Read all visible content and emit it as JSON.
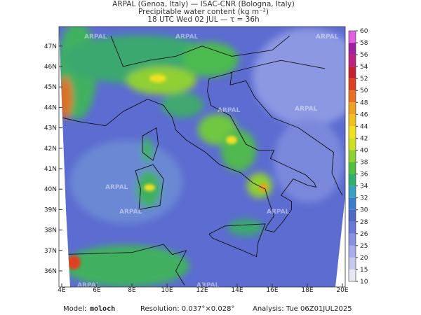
{
  "header": {
    "lines": [
      "ARPAL (Genoa, Italy)  —  ISAC-CNR (Bologna, Italy)",
      "Precipitable water content (kg m⁻²)",
      "18 UTC Wed 02 JUL  —  τ = 36h"
    ]
  },
  "map": {
    "watermark": "ARPAL",
    "lon_labels": [
      "4E",
      "6E",
      "8E",
      "10E",
      "12E",
      "14E",
      "16E",
      "18E",
      "20E"
    ],
    "lat_labels": [
      "36N",
      "37N",
      "38N",
      "39N",
      "40N",
      "41N",
      "42N",
      "43N",
      "44N",
      "45N",
      "46N",
      "47N"
    ]
  },
  "colorbar": {
    "ticks": [
      10,
      15,
      20,
      25,
      26,
      28,
      30,
      32,
      34,
      36,
      38,
      40,
      42,
      44,
      46,
      48,
      50,
      52,
      54,
      56,
      58,
      60
    ],
    "colors": [
      "#e8e8f4",
      "#c8c8ee",
      "#a8acea",
      "#8890e0",
      "#6878d8",
      "#5068c8",
      "#3c7ccc",
      "#38a0c0",
      "#30b070",
      "#50c040",
      "#90d030",
      "#d0e020",
      "#f0e020",
      "#f0c020",
      "#f0a020",
      "#e87020",
      "#e04020",
      "#c82030",
      "#c02080",
      "#a020a0",
      "#e060e0"
    ]
  },
  "footer": {
    "model_label": "Model:",
    "model": "moloch",
    "resolution": "Resolution: 0.037°×0.028°",
    "analysis": "Analysis: Tue 06Z01JUL2025"
  }
}
